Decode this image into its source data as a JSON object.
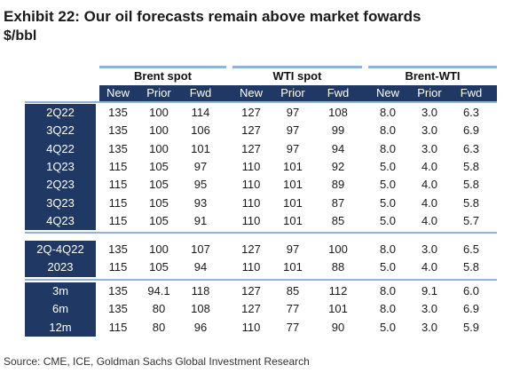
{
  "title": "Exhibit 22: Our oil forecasts remain above market fowards",
  "subtitle": "$/bbl",
  "groups": [
    "Brent spot",
    "WTI spot",
    "Brent-WTI"
  ],
  "subheaders": [
    "New",
    "Prior",
    "Fwd"
  ],
  "sections": [
    {
      "rows": [
        {
          "label": "2Q22",
          "values": [
            "135",
            "100",
            "114",
            "127",
            "97",
            "108",
            "8.0",
            "3.0",
            "6.3"
          ]
        },
        {
          "label": "3Q22",
          "values": [
            "135",
            "100",
            "106",
            "127",
            "97",
            "99",
            "8.0",
            "3.0",
            "6.9"
          ]
        },
        {
          "label": "4Q22",
          "values": [
            "135",
            "100",
            "101",
            "127",
            "97",
            "94",
            "8.0",
            "3.0",
            "6.3"
          ]
        },
        {
          "label": "1Q23",
          "values": [
            "115",
            "105",
            "97",
            "110",
            "101",
            "92",
            "5.0",
            "4.0",
            "5.8"
          ]
        },
        {
          "label": "2Q23",
          "values": [
            "115",
            "105",
            "95",
            "110",
            "101",
            "89",
            "5.0",
            "4.0",
            "5.8"
          ]
        },
        {
          "label": "3Q23",
          "values": [
            "115",
            "105",
            "93",
            "110",
            "101",
            "87",
            "5.0",
            "4.0",
            "5.8"
          ]
        },
        {
          "label": "4Q23",
          "values": [
            "115",
            "105",
            "91",
            "110",
            "101",
            "85",
            "5.0",
            "4.0",
            "5.7"
          ]
        }
      ]
    },
    {
      "rows": [
        {
          "label": "2Q-4Q22",
          "values": [
            "135",
            "100",
            "107",
            "127",
            "97",
            "100",
            "8.0",
            "3.0",
            "6.5"
          ]
        },
        {
          "label": "2023",
          "values": [
            "115",
            "105",
            "94",
            "110",
            "101",
            "88",
            "5.0",
            "4.0",
            "5.8"
          ]
        }
      ]
    },
    {
      "rows": [
        {
          "label": "3m",
          "values": [
            "135",
            "94.1",
            "118",
            "127",
            "85",
            "112",
            "8.0",
            "9.1",
            "6.0"
          ]
        },
        {
          "label": "6m",
          "values": [
            "135",
            "80",
            "108",
            "127",
            "77",
            "101",
            "8.0",
            "3.0",
            "6.9"
          ]
        },
        {
          "label": "12m",
          "values": [
            "115",
            "80",
            "96",
            "110",
            "77",
            "90",
            "5.0",
            "3.0",
            "5.9"
          ]
        }
      ]
    }
  ],
  "source": "Source: CME, ICE, Goldman Sachs Global Investment Research",
  "colors": {
    "navy": "#1f3864",
    "lightblue": "#8db4d9"
  }
}
